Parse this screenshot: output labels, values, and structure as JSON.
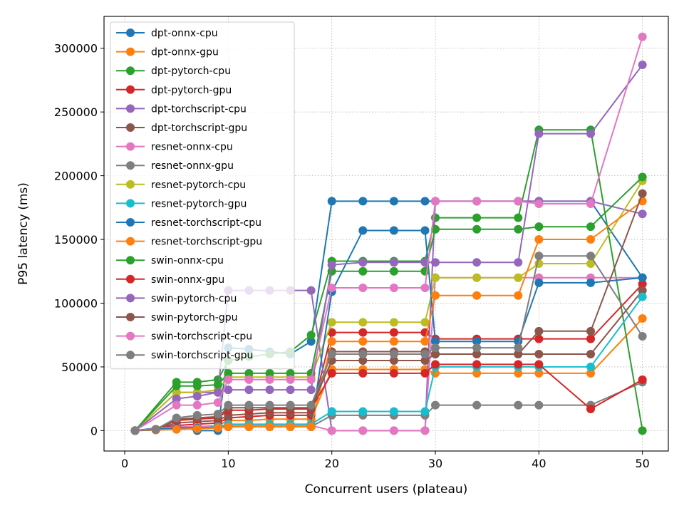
{
  "chart_data": {
    "type": "line",
    "title": "",
    "xlabel": "Concurrent users (plateau)",
    "ylabel": "P95 latency (ms)",
    "xlim": [
      -2,
      52.5
    ],
    "ylim": [
      -16000,
      325000
    ],
    "xticks": [
      0,
      10,
      20,
      30,
      40,
      50
    ],
    "yticks": [
      0,
      50000,
      100000,
      150000,
      200000,
      250000,
      300000
    ],
    "grid": true,
    "grid_style": "dotted",
    "legend_position": "upper-left",
    "colors": [
      "#1f77b4",
      "#ff7f0e",
      "#2ca02c",
      "#d62728",
      "#9467bd",
      "#8c564b",
      "#e377c2",
      "#7f7f7f",
      "#bcbd22",
      "#17becf"
    ],
    "series": [
      {
        "name": "dpt-onnx-cpu",
        "color": "#1f77b4",
        "x": [
          1,
          5,
          7,
          9,
          10,
          12,
          14,
          16,
          18,
          20,
          23,
          26,
          29,
          30,
          34,
          38,
          40,
          45,
          50
        ],
        "y": [
          0,
          4000,
          0,
          0,
          65000,
          64000,
          62000,
          60000,
          70000,
          180000,
          180000,
          180000,
          180000,
          180000,
          180000,
          180000,
          180000,
          180000,
          120000
        ]
      },
      {
        "name": "dpt-onnx-gpu",
        "color": "#ff7f0e",
        "x": [
          1,
          3,
          5,
          7,
          9,
          10,
          12,
          14,
          16,
          18,
          20,
          23,
          26,
          29,
          30,
          34,
          38,
          40,
          45,
          50
        ],
        "y": [
          0,
          1000,
          2000,
          3000,
          4000,
          8000,
          8000,
          9000,
          9000,
          9000,
          48000,
          48000,
          48000,
          48000,
          45000,
          45000,
          45000,
          45000,
          45000,
          88000
        ]
      },
      {
        "name": "dpt-pytorch-cpu",
        "color": "#2ca02c",
        "x": [
          1,
          5,
          7,
          9,
          10,
          12,
          14,
          16,
          18,
          20,
          23,
          26,
          29,
          30,
          34,
          38,
          40,
          45,
          50
        ],
        "y": [
          0,
          38000,
          38000,
          40000,
          55000,
          58000,
          60000,
          62000,
          75000,
          133000,
          133000,
          133000,
          133000,
          167000,
          167000,
          167000,
          236000,
          236000,
          0
        ]
      },
      {
        "name": "dpt-pytorch-gpu",
        "color": "#d62728",
        "x": [
          1,
          3,
          5,
          7,
          9,
          10,
          12,
          14,
          16,
          18,
          20,
          23,
          26,
          29,
          30,
          34,
          38,
          40,
          45,
          50
        ],
        "y": [
          0,
          1000,
          4000,
          5000,
          6000,
          10000,
          11000,
          12000,
          12000,
          12000,
          77000,
          77000,
          77000,
          77000,
          72000,
          72000,
          72000,
          72000,
          72000,
          115000
        ]
      },
      {
        "name": "dpt-torchscript-cpu",
        "color": "#9467bd",
        "x": [
          1,
          5,
          7,
          9,
          10,
          12,
          14,
          16,
          18,
          20,
          23,
          26,
          29,
          30,
          34,
          38,
          40,
          45,
          50
        ],
        "y": [
          0,
          30000,
          30000,
          30000,
          110000,
          110000,
          110000,
          110000,
          110000,
          0,
          0,
          0,
          0,
          180000,
          180000,
          180000,
          180000,
          180000,
          170000
        ]
      },
      {
        "name": "dpt-torchscript-gpu",
        "color": "#8c564b",
        "x": [
          1,
          3,
          5,
          7,
          9,
          10,
          12,
          14,
          16,
          18,
          20,
          23,
          26,
          29,
          30,
          34,
          38,
          40,
          45,
          50
        ],
        "y": [
          0,
          1000,
          6000,
          7000,
          8000,
          12000,
          13000,
          14000,
          14000,
          14000,
          62000,
          62000,
          62000,
          62000,
          60000,
          60000,
          60000,
          60000,
          60000,
          110000
        ]
      },
      {
        "name": "resnet-onnx-cpu",
        "color": "#e377c2",
        "x": [
          1,
          5,
          7,
          9,
          10,
          12,
          14,
          16,
          18,
          20,
          23,
          26,
          29,
          30,
          34,
          38,
          40,
          45,
          50
        ],
        "y": [
          0,
          3000,
          3000,
          3000,
          4000,
          4000,
          4000,
          4000,
          4000,
          0,
          0,
          0,
          0,
          120000,
          120000,
          120000,
          120000,
          120000,
          120000
        ]
      },
      {
        "name": "resnet-onnx-gpu",
        "color": "#7f7f7f",
        "x": [
          1,
          3,
          5,
          7,
          9,
          10,
          12,
          14,
          16,
          18,
          20,
          23,
          26,
          29,
          30,
          34,
          38,
          40,
          45,
          50
        ],
        "y": [
          0,
          500,
          1000,
          1500,
          2000,
          3000,
          3000,
          3000,
          3000,
          3000,
          12000,
          12000,
          12000,
          12000,
          20000,
          20000,
          20000,
          20000,
          20000,
          38000
        ]
      },
      {
        "name": "resnet-pytorch-cpu",
        "color": "#bcbd22",
        "x": [
          1,
          5,
          7,
          9,
          10,
          12,
          14,
          16,
          18,
          20,
          23,
          26,
          29,
          30,
          34,
          38,
          40,
          45,
          50
        ],
        "y": [
          0,
          30000,
          30000,
          32000,
          42000,
          42000,
          42000,
          42000,
          42000,
          85000,
          85000,
          85000,
          85000,
          120000,
          120000,
          120000,
          131000,
          131000,
          196000
        ]
      },
      {
        "name": "resnet-pytorch-gpu",
        "color": "#17becf",
        "x": [
          1,
          3,
          5,
          7,
          9,
          10,
          12,
          14,
          16,
          18,
          20,
          23,
          26,
          29,
          30,
          34,
          38,
          40,
          45,
          50
        ],
        "y": [
          0,
          800,
          1500,
          2000,
          3000,
          5000,
          5000,
          5000,
          5000,
          5000,
          15000,
          15000,
          15000,
          15000,
          50000,
          50000,
          50000,
          50000,
          50000,
          105000
        ]
      },
      {
        "name": "resnet-torchscript-cpu",
        "color": "#1f77b4",
        "x": [
          1,
          5,
          7,
          9,
          10,
          12,
          14,
          16,
          18,
          20,
          23,
          26,
          29,
          30,
          34,
          38,
          40,
          45,
          50
        ],
        "y": [
          0,
          2000,
          2000,
          2000,
          3000,
          3000,
          3000,
          3000,
          3000,
          109000,
          157000,
          157000,
          157000,
          70000,
          70000,
          70000,
          116000,
          116000,
          120000
        ]
      },
      {
        "name": "resnet-torchscript-gpu",
        "color": "#ff7f0e",
        "x": [
          1,
          3,
          5,
          7,
          9,
          10,
          12,
          14,
          16,
          18,
          20,
          23,
          26,
          29,
          30,
          34,
          38,
          40,
          45,
          50
        ],
        "y": [
          0,
          500,
          1000,
          1500,
          2000,
          3000,
          3000,
          3000,
          3000,
          3000,
          70000,
          70000,
          70000,
          70000,
          106000,
          106000,
          106000,
          150000,
          150000,
          180000
        ]
      },
      {
        "name": "swin-onnx-cpu",
        "color": "#2ca02c",
        "x": [
          1,
          5,
          7,
          9,
          10,
          12,
          14,
          16,
          18,
          20,
          23,
          26,
          29,
          30,
          34,
          38,
          40,
          45,
          50
        ],
        "y": [
          0,
          35000,
          35000,
          36000,
          45000,
          45000,
          45000,
          45000,
          45000,
          125000,
          125000,
          125000,
          125000,
          158000,
          158000,
          158000,
          160000,
          160000,
          199000
        ]
      },
      {
        "name": "swin-onnx-gpu",
        "color": "#d62728",
        "x": [
          1,
          3,
          5,
          7,
          9,
          10,
          12,
          14,
          16,
          18,
          20,
          23,
          26,
          29,
          30,
          34,
          38,
          40,
          45,
          50
        ],
        "y": [
          0,
          1000,
          8000,
          9000,
          10000,
          16000,
          16000,
          17000,
          17000,
          17000,
          45000,
          45000,
          45000,
          45000,
          52000,
          52000,
          52000,
          52000,
          17000,
          40000
        ]
      },
      {
        "name": "swin-pytorch-cpu",
        "color": "#9467bd",
        "x": [
          1,
          5,
          7,
          9,
          10,
          12,
          14,
          16,
          18,
          20,
          23,
          26,
          29,
          30,
          34,
          38,
          40,
          45,
          50
        ],
        "y": [
          0,
          25000,
          27000,
          30000,
          32000,
          32000,
          32000,
          32000,
          32000,
          130000,
          132000,
          132000,
          132000,
          132000,
          132000,
          132000,
          233000,
          233000,
          287000
        ]
      },
      {
        "name": "swin-pytorch-gpu",
        "color": "#8c564b",
        "x": [
          1,
          3,
          5,
          7,
          9,
          10,
          12,
          14,
          16,
          18,
          20,
          23,
          26,
          29,
          30,
          34,
          38,
          40,
          45,
          50
        ],
        "y": [
          0,
          1000,
          9000,
          10000,
          11000,
          18000,
          18000,
          18000,
          18000,
          18000,
          55000,
          55000,
          55000,
          55000,
          60000,
          60000,
          60000,
          78000,
          78000,
          186000
        ]
      },
      {
        "name": "swin-torchscript-cpu",
        "color": "#e377c2",
        "x": [
          1,
          5,
          7,
          9,
          10,
          12,
          14,
          16,
          18,
          20,
          23,
          26,
          29,
          30,
          34,
          38,
          40,
          45,
          50
        ],
        "y": [
          0,
          20000,
          20000,
          22000,
          40000,
          40000,
          40000,
          40000,
          40000,
          112000,
          112000,
          112000,
          112000,
          180000,
          180000,
          180000,
          178000,
          178000,
          309000
        ]
      },
      {
        "name": "swin-torchscript-gpu",
        "color": "#7f7f7f",
        "x": [
          1,
          3,
          5,
          7,
          9,
          10,
          12,
          14,
          16,
          18,
          20,
          23,
          26,
          29,
          30,
          34,
          38,
          40,
          45,
          50
        ],
        "y": [
          0,
          1000,
          10000,
          12000,
          13000,
          20000,
          20000,
          20000,
          20000,
          20000,
          60000,
          60000,
          60000,
          60000,
          65000,
          65000,
          65000,
          137000,
          137000,
          74000
        ]
      }
    ]
  }
}
